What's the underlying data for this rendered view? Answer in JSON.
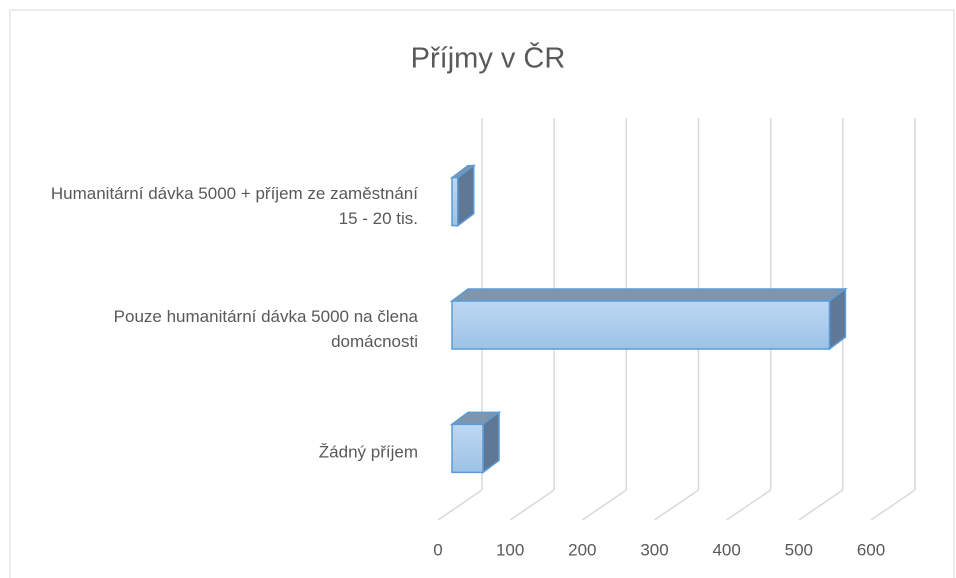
{
  "chart_data": {
    "type": "bar3d_horizontal",
    "title": "Příjmy v ČR",
    "categories": [
      "Žádný příjem",
      "Pouze humanitární dávka 5000 na člena domácnosti",
      "Humanitární dávka 5000 + příjem ze zaměstnání 15 - 20 tis."
    ],
    "values": [
      43,
      523,
      8
    ],
    "color": "#9dc3e6",
    "xlim": [
      0,
      600
    ],
    "xticks": [
      0,
      100,
      200,
      300,
      400,
      500,
      600
    ],
    "grid": true
  }
}
